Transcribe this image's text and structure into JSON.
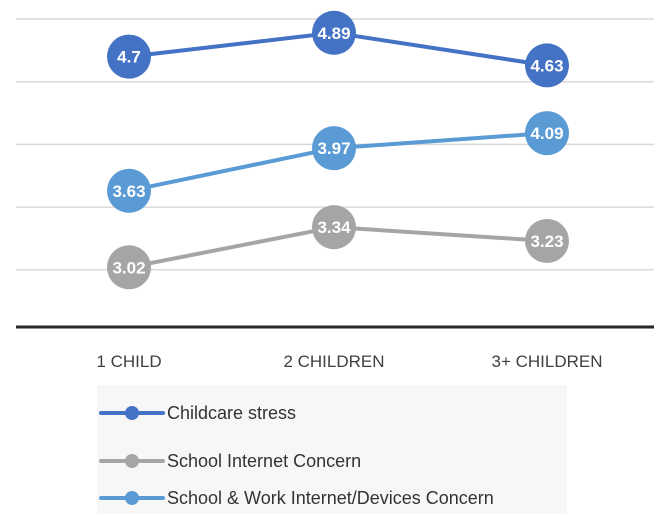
{
  "chart_data": {
    "type": "line",
    "categories": [
      "1 CHILD",
      "2 CHILDREN",
      "3+ CHILDREN"
    ],
    "series": [
      {
        "name": "Childcare stress",
        "values": [
          4.7,
          4.89,
          4.63
        ],
        "labels": [
          "4.7",
          "4.89",
          "4.63"
        ],
        "color": "#4472C4"
      },
      {
        "name": "School Internet Concern",
        "values": [
          3.02,
          3.34,
          3.23
        ],
        "labels": [
          "3.02",
          "3.34",
          "3.23"
        ],
        "color": "#A5A5A5"
      },
      {
        "name": "School & Work Internet/Devices Concern",
        "values": [
          3.63,
          3.97,
          4.09
        ],
        "labels": [
          "3.63",
          "3.97",
          "4.09"
        ],
        "color": "#5B9BD5"
      }
    ],
    "grid": true,
    "legend_position": "bottom"
  }
}
